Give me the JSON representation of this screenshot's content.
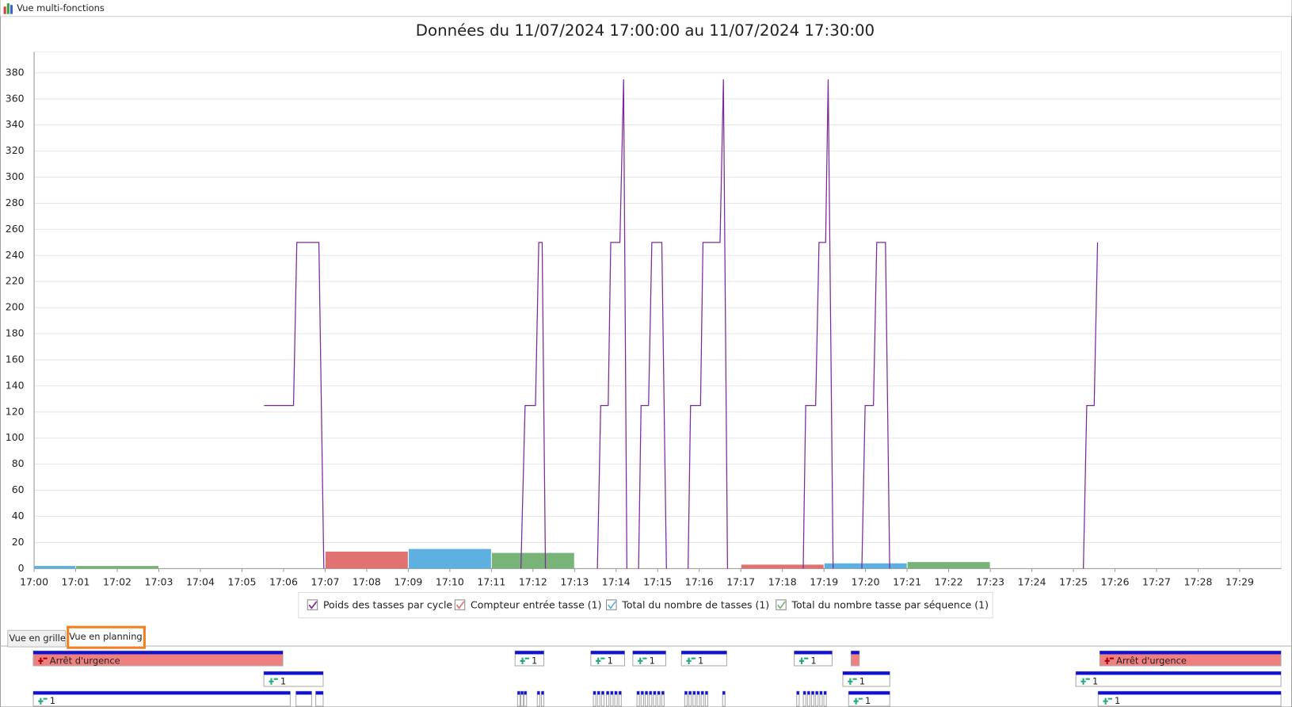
{
  "window_title": "Vue multi-fonctions",
  "chart_data": {
    "type": "line",
    "title": "Données du 11/07/2024 17:00:00 au 11/07/2024 17:30:00",
    "xlim": [
      0,
      30
    ],
    "ylim": [
      0,
      396
    ],
    "xticks": [
      {
        "value": 0,
        "label": "17:00"
      },
      {
        "value": 1,
        "label": "17:01"
      },
      {
        "value": 2,
        "label": "17:02"
      },
      {
        "value": 3,
        "label": "17:03"
      },
      {
        "value": 4,
        "label": "17:04"
      },
      {
        "value": 5,
        "label": "17:05"
      },
      {
        "value": 6,
        "label": "17:06"
      },
      {
        "value": 7,
        "label": "17:07"
      },
      {
        "value": 8,
        "label": "17:08"
      },
      {
        "value": 9,
        "label": "17:09"
      },
      {
        "value": 10,
        "label": "17:10"
      },
      {
        "value": 11,
        "label": "17:11"
      },
      {
        "value": 12,
        "label": "17:12"
      },
      {
        "value": 13,
        "label": "17:13"
      },
      {
        "value": 14,
        "label": "17:14"
      },
      {
        "value": 15,
        "label": "17:15"
      },
      {
        "value": 16,
        "label": "17:16"
      },
      {
        "value": 17,
        "label": "17:17"
      },
      {
        "value": 18,
        "label": "17:18"
      },
      {
        "value": 19,
        "label": "17:19"
      },
      {
        "value": 20,
        "label": "17:20"
      },
      {
        "value": 21,
        "label": "17:21"
      },
      {
        "value": 22,
        "label": "17:22"
      },
      {
        "value": 23,
        "label": "17:23"
      },
      {
        "value": 24,
        "label": "17:24"
      },
      {
        "value": 25,
        "label": "17:25"
      },
      {
        "value": 26,
        "label": "17:26"
      },
      {
        "value": 27,
        "label": "17:27"
      },
      {
        "value": 28,
        "label": "17:28"
      },
      {
        "value": 29,
        "label": "17:29"
      }
    ],
    "yticks": [
      0,
      20,
      40,
      60,
      80,
      100,
      120,
      140,
      160,
      180,
      200,
      220,
      240,
      260,
      280,
      300,
      320,
      340,
      360,
      380
    ],
    "grid": true,
    "series": [
      {
        "name": "Poids des tasses par cycle",
        "type": "line",
        "color": "#7b2a9a",
        "x": [
          5.53,
          6.24,
          6.32,
          6.85,
          6.97,
          null,
          11.71,
          11.81,
          12.06,
          12.14,
          12.22,
          12.3,
          null,
          13.55,
          13.63,
          13.81,
          13.87,
          14.09,
          14.18,
          14.26,
          null,
          14.54,
          14.6,
          14.78,
          14.86,
          15.1,
          15.21,
          null,
          15.73,
          15.79,
          16.03,
          16.09,
          16.5,
          16.58,
          16.68,
          null,
          18.5,
          18.56,
          18.8,
          18.88,
          19.04,
          19.1,
          19.22,
          null,
          19.91,
          19.99,
          20.19,
          20.27,
          20.48,
          20.58,
          null,
          25.24,
          25.32,
          25.5,
          25.58
        ],
        "values": [
          125,
          125,
          250,
          250,
          0,
          null,
          0,
          125,
          125,
          250,
          250,
          0,
          null,
          0,
          125,
          125,
          250,
          250,
          375,
          0,
          null,
          0,
          125,
          125,
          250,
          250,
          0,
          null,
          0,
          125,
          125,
          250,
          250,
          375,
          0,
          null,
          0,
          125,
          125,
          250,
          250,
          375,
          0,
          null,
          0,
          125,
          125,
          250,
          250,
          0,
          null,
          0,
          125,
          125,
          250
        ]
      },
      {
        "name": "Compteur entrée tasse (1)",
        "type": "bar",
        "color": "#e07272",
        "x": [
          7,
          17
        ],
        "x_end": [
          9,
          19
        ],
        "values": [
          13,
          3
        ]
      },
      {
        "name": "Total du nombre de tasses (1)",
        "type": "bar",
        "color": "#5db0e0",
        "x": [
          0,
          9,
          19
        ],
        "x_end": [
          1,
          11,
          21
        ],
        "values": [
          2,
          15,
          4
        ]
      },
      {
        "name": "Total du nombre tasse par séquence (1)",
        "type": "bar",
        "color": "#78b478",
        "x": [
          1,
          11,
          21
        ],
        "x_end": [
          3,
          13,
          23
        ],
        "values": [
          2,
          12,
          5
        ]
      }
    ]
  },
  "tabs": [
    "Vue en grille",
    "Vue en planning"
  ],
  "planning": {
    "rows": [
      [
        "Arrêt d'urgence",
        "1",
        "1",
        "1",
        "1",
        "1",
        "Arrêt d'urgence"
      ],
      [
        "1",
        "1",
        "1"
      ],
      [
        "1",
        "1",
        "1"
      ]
    ]
  }
}
